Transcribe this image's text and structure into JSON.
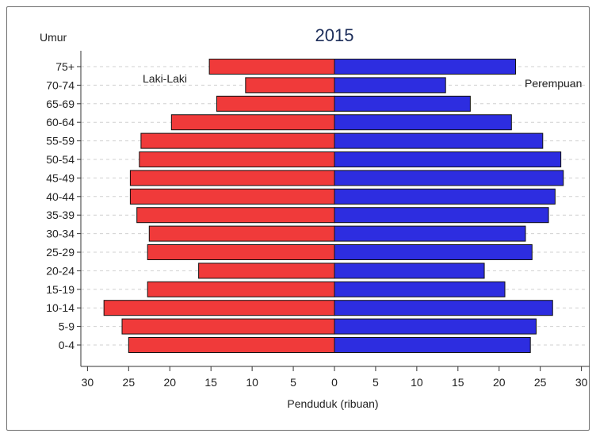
{
  "chart_data": {
    "type": "bar",
    "orientation": "horizontal-population-pyramid",
    "title": "2015",
    "ylabel": "Umur",
    "xlabel": "Penduduk (ribuan)",
    "categories": [
      "75+",
      "70-74",
      "65-69",
      "60-64",
      "55-59",
      "50-54",
      "45-49",
      "40-44",
      "35-39",
      "30-34",
      "25-29",
      "20-24",
      "15-19",
      "10-14",
      "5-9",
      "0-4"
    ],
    "series": [
      {
        "name": "Laki-Laki",
        "color": "#f03a3a",
        "side": "left",
        "values": [
          15.2,
          10.8,
          14.3,
          19.8,
          23.5,
          23.7,
          24.8,
          24.8,
          24.0,
          22.5,
          22.7,
          16.5,
          22.7,
          28.0,
          25.8,
          25.0
        ]
      },
      {
        "name": "Perempuan",
        "color": "#2d2de0",
        "side": "right",
        "values": [
          22.0,
          13.5,
          16.5,
          21.5,
          25.3,
          27.5,
          27.8,
          26.8,
          26.0,
          23.2,
          24.0,
          18.2,
          20.7,
          26.5,
          24.5,
          23.8
        ]
      }
    ],
    "xlim": [
      -31,
      31
    ],
    "xticks": [
      30,
      25,
      20,
      15,
      10,
      5,
      0,
      5,
      10,
      15,
      20,
      25,
      30
    ],
    "grid": "horizontal dashed",
    "legend": "inline labels top-left and top-right"
  }
}
